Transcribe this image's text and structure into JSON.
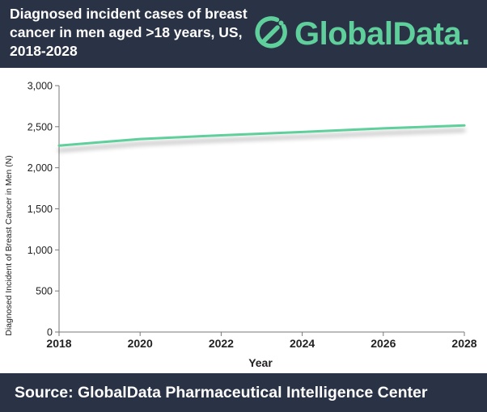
{
  "header": {
    "title_lines": [
      "Diagnosed incident cases of breast",
      "cancer in men aged >18 years, US,",
      "2018-2028"
    ],
    "logo_text": "GlobalData."
  },
  "footer": {
    "source": "Source:  GlobalData Pharmaceutical Intelligence Center"
  },
  "colors": {
    "header_bg": "#2a3245",
    "brand_green": "#5fcf9c",
    "line": "#5fcf9c"
  },
  "chart_data": {
    "type": "line",
    "title": "Diagnosed incident cases of breast cancer in men aged >18 years, US, 2018-2028",
    "xlabel": "Year",
    "ylabel": "Diagnosed Incident of Breast Cancer in Men  (N)",
    "xlim": [
      2018,
      2028
    ],
    "ylim": [
      0,
      3000
    ],
    "x_ticks": [
      "2018",
      "2020",
      "2022",
      "2024",
      "2026",
      "2028"
    ],
    "y_ticks": [
      "0",
      "500",
      "1,000",
      "1,500",
      "2,000",
      "2,500",
      "3,000"
    ],
    "grid": false,
    "legend": "none",
    "series": [
      {
        "x": [
          2018,
          2020,
          2022,
          2024,
          2026,
          2028
        ],
        "values": [
          2270,
          2350,
          2395,
          2435,
          2480,
          2515
        ]
      }
    ]
  }
}
